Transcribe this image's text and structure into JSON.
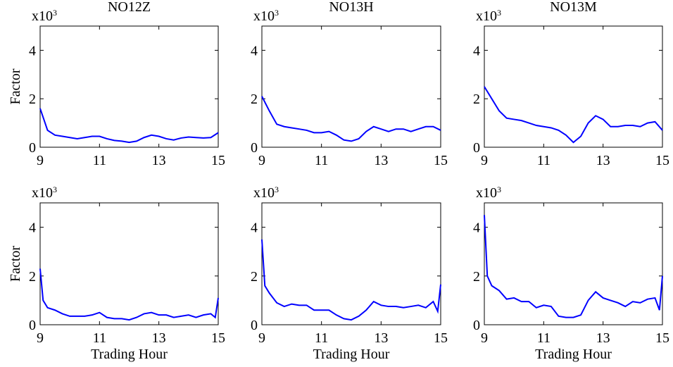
{
  "chart_data": [
    {
      "type": "line",
      "title": "NO12Z",
      "ylabel": "Factor",
      "y_multiplier": {
        "base": "x10",
        "exponent": "3"
      },
      "color": "#0000ff",
      "x": [
        9,
        9.25,
        9.5,
        9.75,
        10,
        10.25,
        10.5,
        10.75,
        11,
        11.25,
        11.5,
        11.75,
        12,
        12.25,
        12.5,
        12.75,
        13,
        13.25,
        13.5,
        13.75,
        14,
        14.25,
        14.5,
        14.75,
        15
      ],
      "values": [
        1.6,
        0.7,
        0.5,
        0.45,
        0.4,
        0.35,
        0.4,
        0.45,
        0.45,
        0.35,
        0.28,
        0.25,
        0.2,
        0.25,
        0.4,
        0.5,
        0.45,
        0.35,
        0.3,
        0.38,
        0.42,
        0.4,
        0.38,
        0.4,
        0.6
      ],
      "xlim": [
        9,
        15
      ],
      "xticks": [
        9,
        11,
        13,
        15
      ],
      "ylim": [
        0,
        5
      ],
      "yticks": [
        0,
        2,
        4
      ]
    },
    {
      "type": "line",
      "title": "NO13H",
      "y_multiplier": {
        "base": "x10",
        "exponent": "3"
      },
      "color": "#0000ff",
      "x": [
        9,
        9.25,
        9.5,
        9.75,
        10,
        10.25,
        10.5,
        10.75,
        11,
        11.25,
        11.5,
        11.75,
        12,
        12.25,
        12.5,
        12.75,
        13,
        13.25,
        13.5,
        13.75,
        14,
        14.25,
        14.5,
        14.75,
        15
      ],
      "values": [
        2.1,
        1.5,
        0.95,
        0.85,
        0.8,
        0.75,
        0.7,
        0.6,
        0.6,
        0.65,
        0.5,
        0.3,
        0.25,
        0.35,
        0.65,
        0.85,
        0.75,
        0.65,
        0.75,
        0.75,
        0.65,
        0.75,
        0.85,
        0.85,
        0.7
      ],
      "xlim": [
        9,
        15
      ],
      "xticks": [
        9,
        11,
        13,
        15
      ],
      "ylim": [
        0,
        5
      ],
      "yticks": [
        0,
        2,
        4
      ]
    },
    {
      "type": "line",
      "title": "NO13M",
      "y_multiplier": {
        "base": "x10",
        "exponent": "3"
      },
      "color": "#0000ff",
      "x": [
        9,
        9.25,
        9.5,
        9.75,
        10,
        10.25,
        10.5,
        10.75,
        11,
        11.25,
        11.5,
        11.75,
        12,
        12.25,
        12.5,
        12.75,
        13,
        13.25,
        13.5,
        13.75,
        14,
        14.25,
        14.5,
        14.75,
        15
      ],
      "values": [
        2.5,
        2.0,
        1.5,
        1.2,
        1.15,
        1.1,
        1.0,
        0.9,
        0.85,
        0.8,
        0.7,
        0.5,
        0.2,
        0.45,
        1.0,
        1.3,
        1.15,
        0.85,
        0.85,
        0.9,
        0.9,
        0.85,
        1.0,
        1.05,
        0.7
      ],
      "xlim": [
        9,
        15
      ],
      "xticks": [
        9,
        11,
        13,
        15
      ],
      "ylim": [
        0,
        5
      ],
      "yticks": [
        0,
        2,
        4
      ]
    },
    {
      "type": "line",
      "ylabel": "Factor",
      "xlabel": "Trading Hour",
      "y_multiplier": {
        "base": "x10",
        "exponent": "3"
      },
      "color": "#0000ff",
      "x": [
        9,
        9.1,
        9.25,
        9.5,
        9.75,
        10,
        10.25,
        10.5,
        10.75,
        11,
        11.25,
        11.5,
        11.75,
        12,
        12.25,
        12.5,
        12.75,
        13,
        13.25,
        13.5,
        13.75,
        14,
        14.25,
        14.5,
        14.75,
        14.9,
        15
      ],
      "values": [
        2.3,
        1.0,
        0.7,
        0.6,
        0.45,
        0.35,
        0.35,
        0.35,
        0.4,
        0.5,
        0.3,
        0.25,
        0.25,
        0.2,
        0.3,
        0.45,
        0.5,
        0.4,
        0.4,
        0.3,
        0.35,
        0.4,
        0.3,
        0.4,
        0.45,
        0.3,
        1.1
      ],
      "xlim": [
        9,
        15
      ],
      "xticks": [
        9,
        11,
        13,
        15
      ],
      "ylim": [
        0,
        5
      ],
      "yticks": [
        0,
        2,
        4
      ]
    },
    {
      "type": "line",
      "xlabel": "Trading Hour",
      "y_multiplier": {
        "base": "x10",
        "exponent": "3"
      },
      "color": "#0000ff",
      "x": [
        9,
        9.1,
        9.25,
        9.5,
        9.75,
        10,
        10.25,
        10.5,
        10.75,
        11,
        11.25,
        11.5,
        11.75,
        12,
        12.25,
        12.5,
        12.75,
        13,
        13.25,
        13.5,
        13.75,
        14,
        14.25,
        14.5,
        14.75,
        14.9,
        15
      ],
      "values": [
        3.5,
        1.6,
        1.3,
        0.9,
        0.75,
        0.85,
        0.8,
        0.8,
        0.6,
        0.6,
        0.6,
        0.4,
        0.25,
        0.2,
        0.35,
        0.6,
        0.95,
        0.8,
        0.75,
        0.75,
        0.7,
        0.75,
        0.8,
        0.7,
        0.95,
        0.55,
        1.65
      ],
      "xlim": [
        9,
        15
      ],
      "xticks": [
        9,
        11,
        13,
        15
      ],
      "ylim": [
        0,
        5
      ],
      "yticks": [
        0,
        2,
        4
      ]
    },
    {
      "type": "line",
      "xlabel": "Trading Hour",
      "y_multiplier": {
        "base": "x10",
        "exponent": "3"
      },
      "color": "#0000ff",
      "x": [
        9,
        9.1,
        9.25,
        9.5,
        9.75,
        10,
        10.25,
        10.5,
        10.75,
        11,
        11.25,
        11.5,
        11.75,
        12,
        12.25,
        12.5,
        12.75,
        13,
        13.25,
        13.5,
        13.75,
        14,
        14.25,
        14.5,
        14.75,
        14.9,
        15
      ],
      "values": [
        4.5,
        2.0,
        1.6,
        1.4,
        1.05,
        1.1,
        0.95,
        0.95,
        0.7,
        0.8,
        0.75,
        0.35,
        0.3,
        0.3,
        0.4,
        1.0,
        1.35,
        1.1,
        1.0,
        0.9,
        0.75,
        0.95,
        0.9,
        1.05,
        1.1,
        0.6,
        2.0
      ],
      "xlim": [
        9,
        15
      ],
      "xticks": [
        9,
        11,
        13,
        15
      ],
      "ylim": [
        0,
        5
      ],
      "yticks": [
        0,
        2,
        4
      ]
    }
  ]
}
